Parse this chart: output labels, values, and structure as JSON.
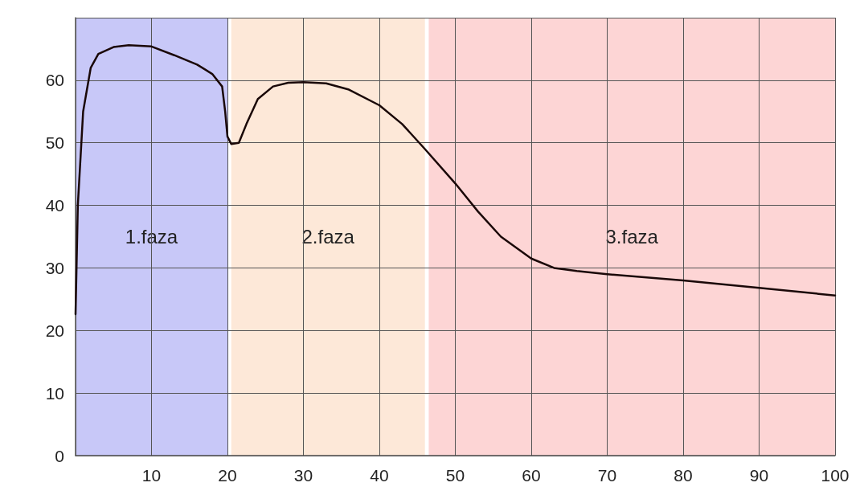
{
  "chart_data": {
    "type": "line",
    "x": [
      0,
      0.3,
      1,
      2,
      3,
      5,
      7,
      10,
      13,
      16,
      18,
      19.3,
      19.7,
      20,
      20.5,
      21.5,
      22.5,
      24,
      26,
      28,
      30,
      33,
      36,
      40,
      43,
      46,
      50,
      53,
      56,
      60,
      63,
      66,
      70,
      80,
      90,
      100
    ],
    "series": [
      {
        "color": "#1a0808",
        "values": [
          22.6,
          40,
          55,
          62,
          64.2,
          65.3,
          65.6,
          65.4,
          64,
          62.5,
          61,
          59,
          55,
          51,
          49.8,
          50,
          53,
          57,
          59,
          59.6,
          59.7,
          59.5,
          58.5,
          56,
          53,
          49,
          43.5,
          39,
          35,
          31.5,
          30,
          29.5,
          29,
          28,
          26.8,
          25.6
        ]
      }
    ],
    "xlim": [
      0,
      100
    ],
    "ylim": [
      0,
      70
    ],
    "xticks": [
      {
        "value": 0,
        "label": null
      },
      10,
      20,
      30,
      40,
      50,
      60,
      70,
      80,
      90,
      100
    ],
    "yticks": [
      0,
      10,
      20,
      30,
      40,
      50,
      60,
      {
        "value": 70,
        "label": null
      }
    ],
    "bands": [
      {
        "axis": "x",
        "from": 0,
        "to": 20,
        "label": "1.faza",
        "color": "#c8c8f8"
      },
      {
        "axis": "x",
        "from": 20.5,
        "to": 46,
        "label": "2.faza",
        "color": "#fde8d8"
      },
      {
        "axis": "x",
        "from": 46.5,
        "to": 100,
        "label": "3.faza",
        "color": "#fdd5d5"
      }
    ],
    "grid": true,
    "marker": "none",
    "line_style": "solid"
  }
}
